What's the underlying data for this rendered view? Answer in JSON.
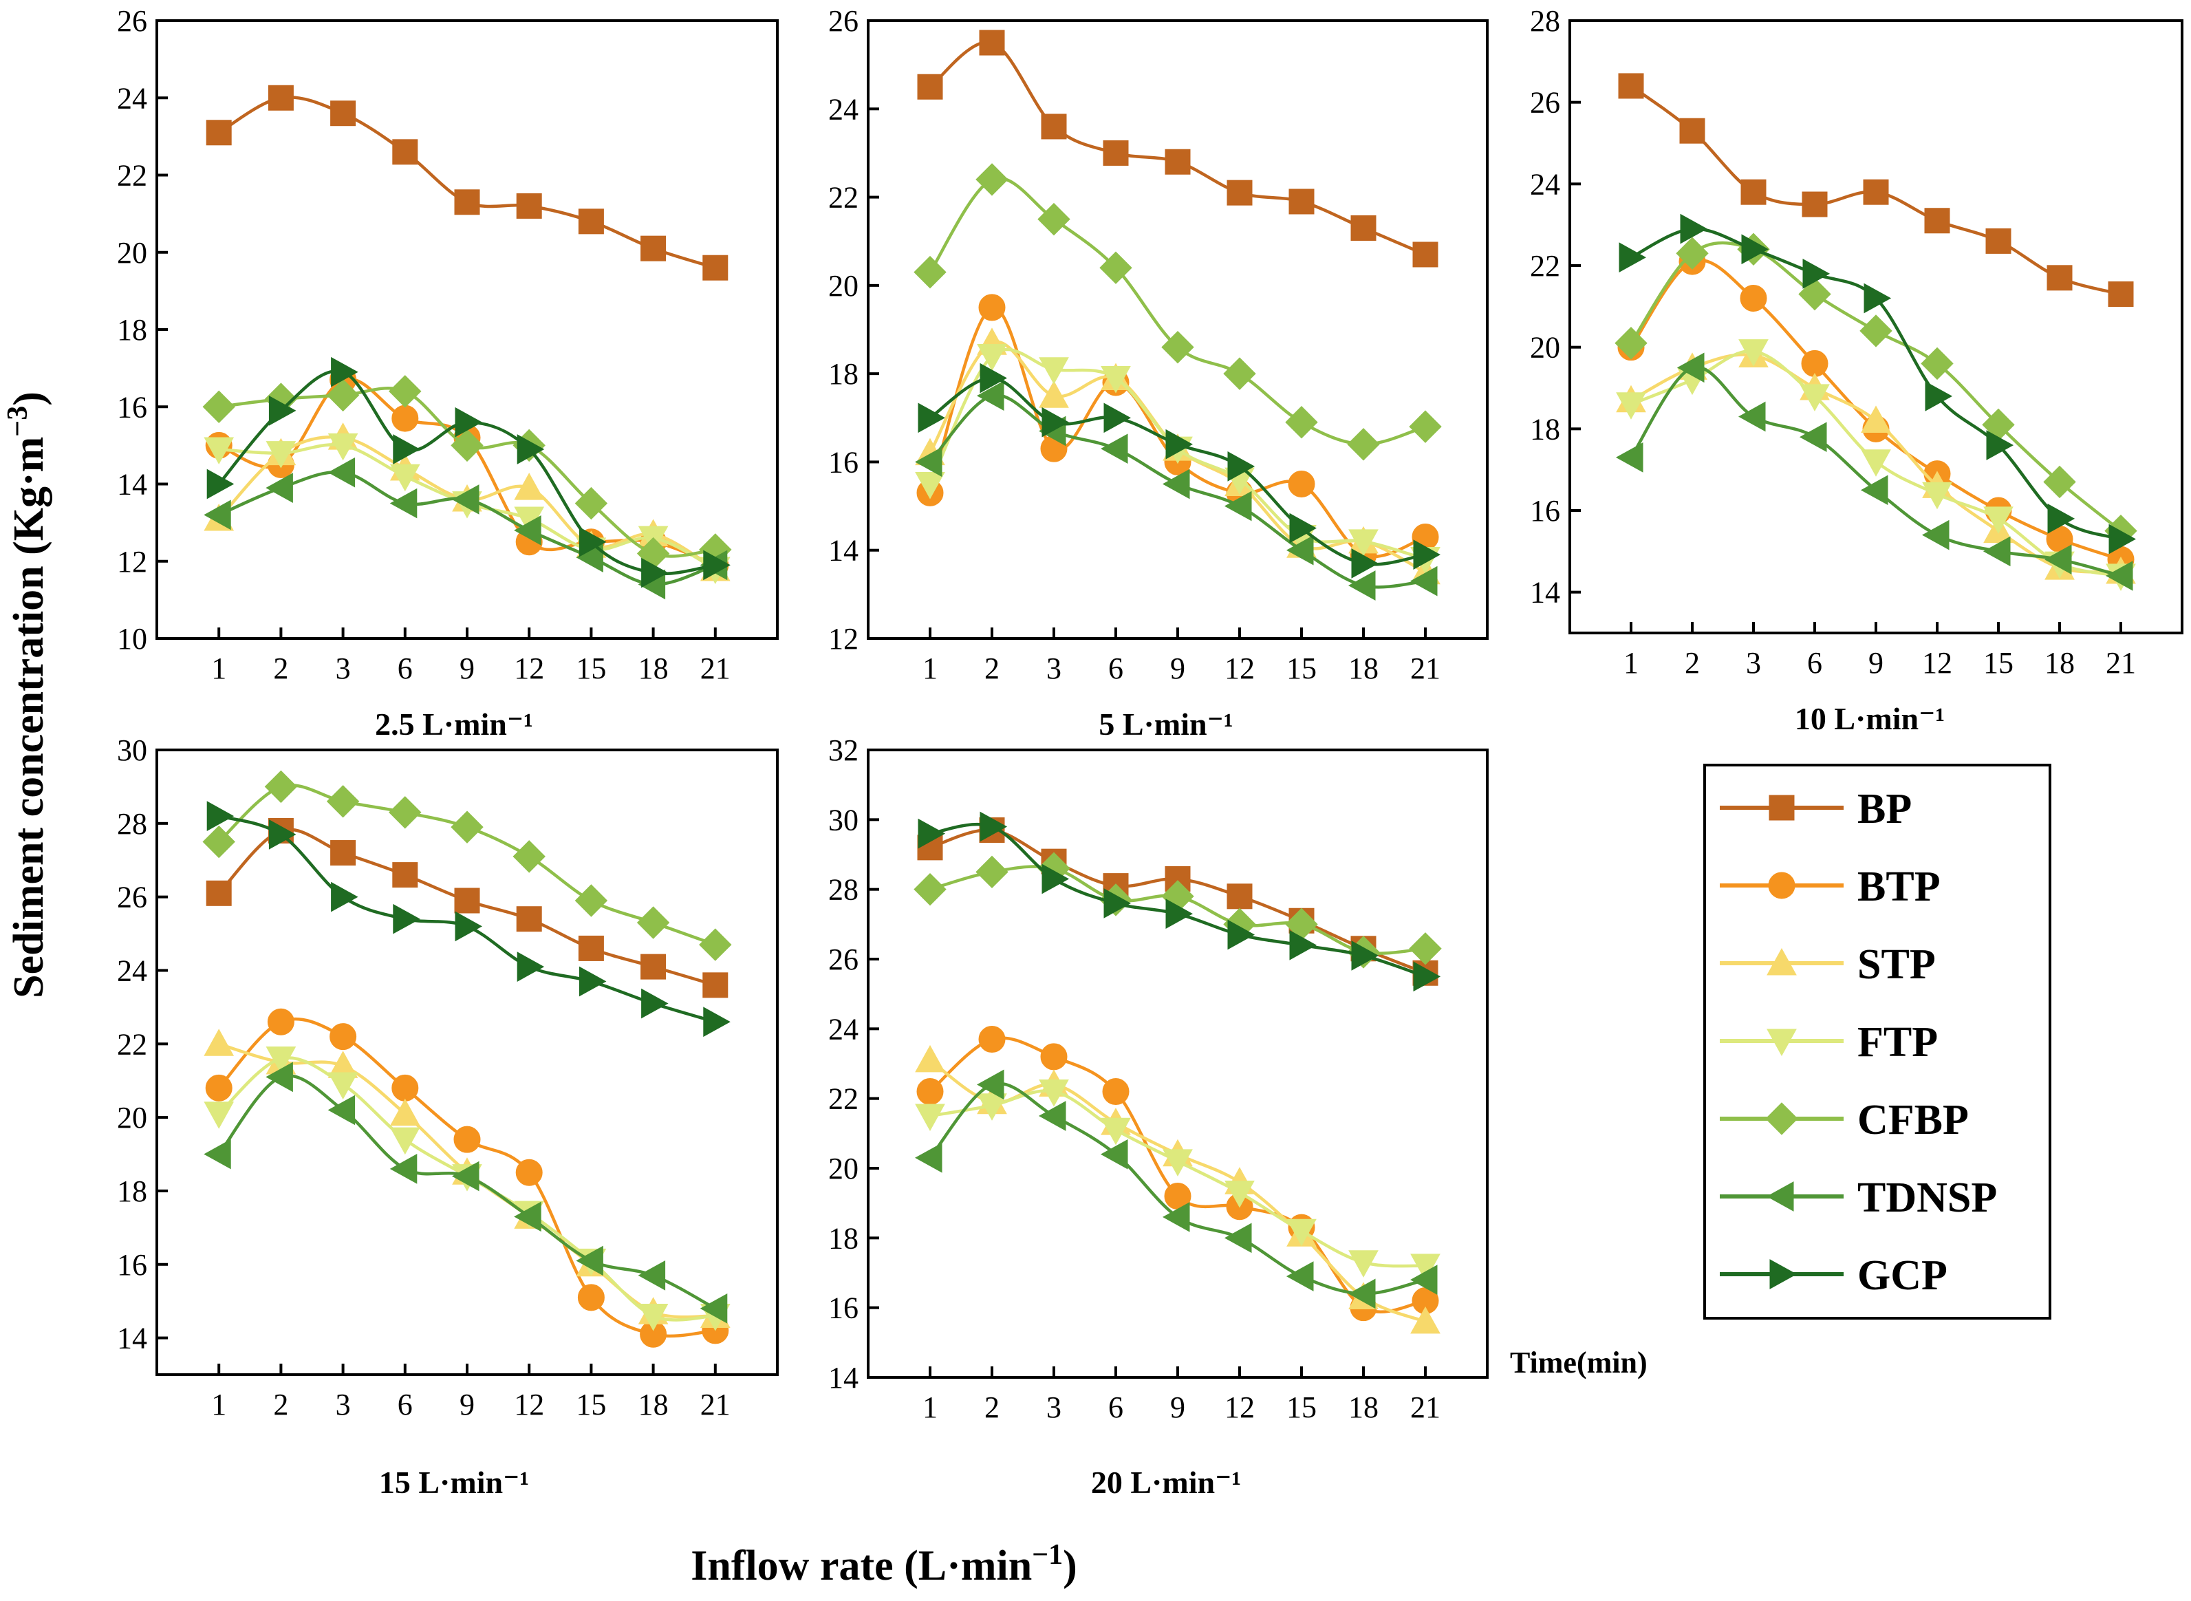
{
  "figure": {
    "ylabel": "Sediment concentration (Kg·m",
    "ylabel_sup": "−3",
    "ylabel_close": ")",
    "xlabel": "Inflow rate (L·min",
    "xlabel_sup": "−1",
    "xlabel_close": ")",
    "time_label": "Time(min)"
  },
  "legend": [
    {
      "name": "BP",
      "color": "#c0651f",
      "marker": "square"
    },
    {
      "name": "BTP",
      "color": "#f5931e",
      "marker": "circle"
    },
    {
      "name": "STP",
      "color": "#f7d96b",
      "marker": "triangle-up"
    },
    {
      "name": "FTP",
      "color": "#dde97d",
      "marker": "triangle-down"
    },
    {
      "name": "CFBP",
      "color": "#8fbf4a",
      "marker": "diamond"
    },
    {
      "name": "TDNSP",
      "color": "#4f9636",
      "marker": "triangle-left"
    },
    {
      "name": "GCP",
      "color": "#1f6b22",
      "marker": "triangle-right"
    }
  ],
  "chart_data": [
    {
      "type": "line",
      "title": "2.5 L·min⁻¹",
      "categories": [
        "1",
        "2",
        "3",
        "6",
        "9",
        "12",
        "15",
        "18",
        "21"
      ],
      "ylim": [
        10,
        26
      ],
      "yticks": [
        10,
        12,
        14,
        16,
        18,
        20,
        22,
        24,
        26
      ],
      "series": [
        {
          "name": "BP",
          "values": [
            23.1,
            24.0,
            23.6,
            22.6,
            21.3,
            21.2,
            20.8,
            20.1,
            19.6
          ]
        },
        {
          "name": "BTP",
          "values": [
            15.0,
            14.5,
            16.7,
            15.7,
            15.2,
            12.5,
            12.5,
            12.5,
            11.9
          ]
        },
        {
          "name": "STP",
          "values": [
            13.1,
            14.8,
            15.2,
            14.4,
            13.6,
            13.9,
            12.4,
            12.7,
            11.8
          ]
        },
        {
          "name": "FTP",
          "values": [
            14.9,
            14.8,
            15.0,
            14.2,
            13.5,
            13.1,
            12.3,
            12.6,
            11.8
          ]
        },
        {
          "name": "CFBP",
          "values": [
            16.0,
            16.2,
            16.3,
            16.4,
            15.0,
            15.0,
            13.5,
            12.2,
            12.3
          ]
        },
        {
          "name": "TDNSP",
          "values": [
            13.2,
            13.9,
            14.3,
            13.5,
            13.6,
            12.8,
            12.1,
            11.4,
            11.9
          ]
        },
        {
          "name": "GCP",
          "values": [
            14.0,
            15.9,
            16.9,
            14.9,
            15.6,
            14.9,
            12.5,
            11.7,
            11.9
          ]
        }
      ]
    },
    {
      "type": "line",
      "title": "5 L·min⁻¹",
      "categories": [
        "1",
        "2",
        "3",
        "6",
        "9",
        "12",
        "15",
        "18",
        "21"
      ],
      "ylim": [
        12,
        26
      ],
      "yticks": [
        12,
        14,
        16,
        18,
        20,
        22,
        24,
        26
      ],
      "series": [
        {
          "name": "BP",
          "values": [
            24.5,
            25.5,
            23.6,
            23.0,
            22.8,
            22.1,
            21.9,
            21.3,
            20.7
          ]
        },
        {
          "name": "BTP",
          "values": [
            15.3,
            19.5,
            16.3,
            17.8,
            16.0,
            15.3,
            15.5,
            13.9,
            14.3
          ]
        },
        {
          "name": "STP",
          "values": [
            16.2,
            18.7,
            17.5,
            17.9,
            16.3,
            15.5,
            14.1,
            14.2,
            13.5
          ]
        },
        {
          "name": "FTP",
          "values": [
            15.5,
            18.4,
            18.1,
            17.9,
            16.3,
            15.6,
            14.3,
            14.2,
            13.8
          ]
        },
        {
          "name": "CFBP",
          "values": [
            20.3,
            22.4,
            21.5,
            20.4,
            18.6,
            18.0,
            16.9,
            16.4,
            16.8
          ]
        },
        {
          "name": "TDNSP",
          "values": [
            16.0,
            17.5,
            16.7,
            16.3,
            15.5,
            15.0,
            14.0,
            13.2,
            13.3
          ]
        },
        {
          "name": "GCP",
          "values": [
            17.0,
            17.9,
            16.9,
            17.0,
            16.4,
            15.9,
            14.5,
            13.7,
            13.9
          ]
        }
      ]
    },
    {
      "type": "line",
      "title": "10 L·min⁻¹",
      "categories": [
        "1",
        "2",
        "3",
        "6",
        "9",
        "12",
        "15",
        "18",
        "21"
      ],
      "ylim": [
        13,
        28
      ],
      "yticks": [
        14,
        16,
        18,
        20,
        22,
        24,
        26,
        28
      ],
      "series": [
        {
          "name": "BP",
          "values": [
            26.4,
            25.3,
            23.8,
            23.5,
            23.8,
            23.1,
            22.6,
            21.7,
            21.3
          ]
        },
        {
          "name": "BTP",
          "values": [
            20.0,
            22.1,
            21.2,
            19.6,
            18.0,
            16.9,
            16.0,
            15.3,
            14.8
          ]
        },
        {
          "name": "STP",
          "values": [
            18.7,
            19.5,
            19.8,
            19.0,
            18.2,
            16.6,
            15.5,
            14.6,
            14.5
          ]
        },
        {
          "name": "FTP",
          "values": [
            18.6,
            19.2,
            19.9,
            18.8,
            17.2,
            16.4,
            15.8,
            14.7,
            14.4
          ]
        },
        {
          "name": "CFBP",
          "values": [
            20.1,
            22.3,
            22.4,
            21.3,
            20.4,
            19.6,
            18.1,
            16.7,
            15.5
          ]
        },
        {
          "name": "TDNSP",
          "values": [
            17.3,
            19.5,
            18.3,
            17.8,
            16.5,
            15.4,
            15.0,
            14.8,
            14.4
          ]
        },
        {
          "name": "GCP",
          "values": [
            22.2,
            22.9,
            22.4,
            21.8,
            21.2,
            18.8,
            17.6,
            15.8,
            15.3
          ]
        }
      ]
    },
    {
      "type": "line",
      "title": "15 L·min⁻¹",
      "categories": [
        "1",
        "2",
        "3",
        "6",
        "9",
        "12",
        "15",
        "18",
        "21"
      ],
      "ylim": [
        13,
        30
      ],
      "yticks": [
        14,
        16,
        18,
        20,
        22,
        24,
        26,
        28,
        30
      ],
      "series": [
        {
          "name": "BP",
          "values": [
            26.1,
            27.8,
            27.2,
            26.6,
            25.9,
            25.4,
            24.6,
            24.1,
            23.6
          ]
        },
        {
          "name": "BTP",
          "values": [
            20.8,
            22.6,
            22.2,
            20.8,
            19.4,
            18.5,
            15.1,
            14.1,
            14.2
          ]
        },
        {
          "name": "STP",
          "values": [
            22.0,
            21.5,
            21.4,
            20.1,
            18.5,
            17.3,
            16.0,
            14.7,
            14.6
          ]
        },
        {
          "name": "FTP",
          "values": [
            20.1,
            21.6,
            20.9,
            19.4,
            18.4,
            17.4,
            16.1,
            14.6,
            14.6
          ]
        },
        {
          "name": "CFBP",
          "values": [
            27.5,
            29.0,
            28.6,
            28.3,
            27.9,
            27.1,
            25.9,
            25.3,
            24.7
          ]
        },
        {
          "name": "TDNSP",
          "values": [
            19.0,
            21.1,
            20.2,
            18.6,
            18.4,
            17.3,
            16.1,
            15.7,
            14.8
          ]
        },
        {
          "name": "GCP",
          "values": [
            28.2,
            27.7,
            26.0,
            25.4,
            25.2,
            24.1,
            23.7,
            23.1,
            22.6
          ]
        }
      ]
    },
    {
      "type": "line",
      "title": "20 L·min⁻¹",
      "categories": [
        "1",
        "2",
        "3",
        "6",
        "9",
        "12",
        "15",
        "18",
        "21"
      ],
      "ylim": [
        14,
        32
      ],
      "yticks": [
        14,
        16,
        18,
        20,
        22,
        24,
        26,
        28,
        30,
        32
      ],
      "series": [
        {
          "name": "BP",
          "values": [
            29.2,
            29.7,
            28.8,
            28.1,
            28.3,
            27.8,
            27.1,
            26.3,
            25.6
          ]
        },
        {
          "name": "BTP",
          "values": [
            22.2,
            23.7,
            23.2,
            22.2,
            19.2,
            18.9,
            18.3,
            16.0,
            16.2
          ]
        },
        {
          "name": "STP",
          "values": [
            23.1,
            21.9,
            22.4,
            21.3,
            20.4,
            19.6,
            18.1,
            16.3,
            15.6
          ]
        },
        {
          "name": "FTP",
          "values": [
            21.5,
            21.8,
            22.2,
            21.1,
            20.2,
            19.3,
            18.2,
            17.3,
            17.2
          ]
        },
        {
          "name": "CFBP",
          "values": [
            28.0,
            28.5,
            28.6,
            27.7,
            27.8,
            27.0,
            27.0,
            26.2,
            26.3
          ]
        },
        {
          "name": "TDNSP",
          "values": [
            20.3,
            22.4,
            21.5,
            20.4,
            18.6,
            18.0,
            16.9,
            16.4,
            16.8
          ]
        },
        {
          "name": "GCP",
          "values": [
            29.6,
            29.8,
            28.3,
            27.6,
            27.3,
            26.7,
            26.4,
            26.1,
            25.5
          ]
        }
      ]
    }
  ]
}
